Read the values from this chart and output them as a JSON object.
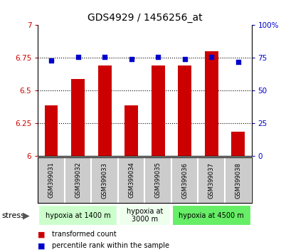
{
  "title": "GDS4929 / 1456256_at",
  "samples": [
    "GSM399031",
    "GSM399032",
    "GSM399033",
    "GSM399034",
    "GSM399035",
    "GSM399036",
    "GSM399037",
    "GSM399038"
  ],
  "bar_values": [
    6.39,
    6.59,
    6.69,
    6.39,
    6.69,
    6.69,
    6.8,
    6.19
  ],
  "dot_values": [
    73,
    76,
    76,
    74,
    76,
    74,
    76,
    72
  ],
  "ylim_left": [
    6.0,
    7.0
  ],
  "ylim_right": [
    0,
    100
  ],
  "yticks_left": [
    6.0,
    6.25,
    6.5,
    6.75,
    7.0
  ],
  "yticks_right": [
    0,
    25,
    50,
    75,
    100
  ],
  "ytick_labels_left": [
    "6",
    "6.25",
    "6.5",
    "6.75",
    "7"
  ],
  "ytick_labels_right": [
    "0",
    "25",
    "50",
    "75",
    "100%"
  ],
  "bar_color": "#CC0000",
  "dot_color": "#0000CC",
  "bar_bottom": 6.0,
  "groups": [
    {
      "label": "hypoxia at 1400 m",
      "start": 0,
      "end": 3,
      "color": "#CCFFCC"
    },
    {
      "label": "hypoxia at\n3000 m",
      "start": 3,
      "end": 5,
      "color": "#EEFFEE"
    },
    {
      "label": "hypoxia at 4500 m",
      "start": 5,
      "end": 8,
      "color": "#66EE66"
    }
  ],
  "stress_label": "stress",
  "legend_bar_label": "transformed count",
  "legend_dot_label": "percentile rank within the sample",
  "plot_bg": "#FFFFFF",
  "tick_color_left": "#CC0000",
  "tick_color_right": "#0000CC",
  "sample_bg": "#CCCCCC"
}
